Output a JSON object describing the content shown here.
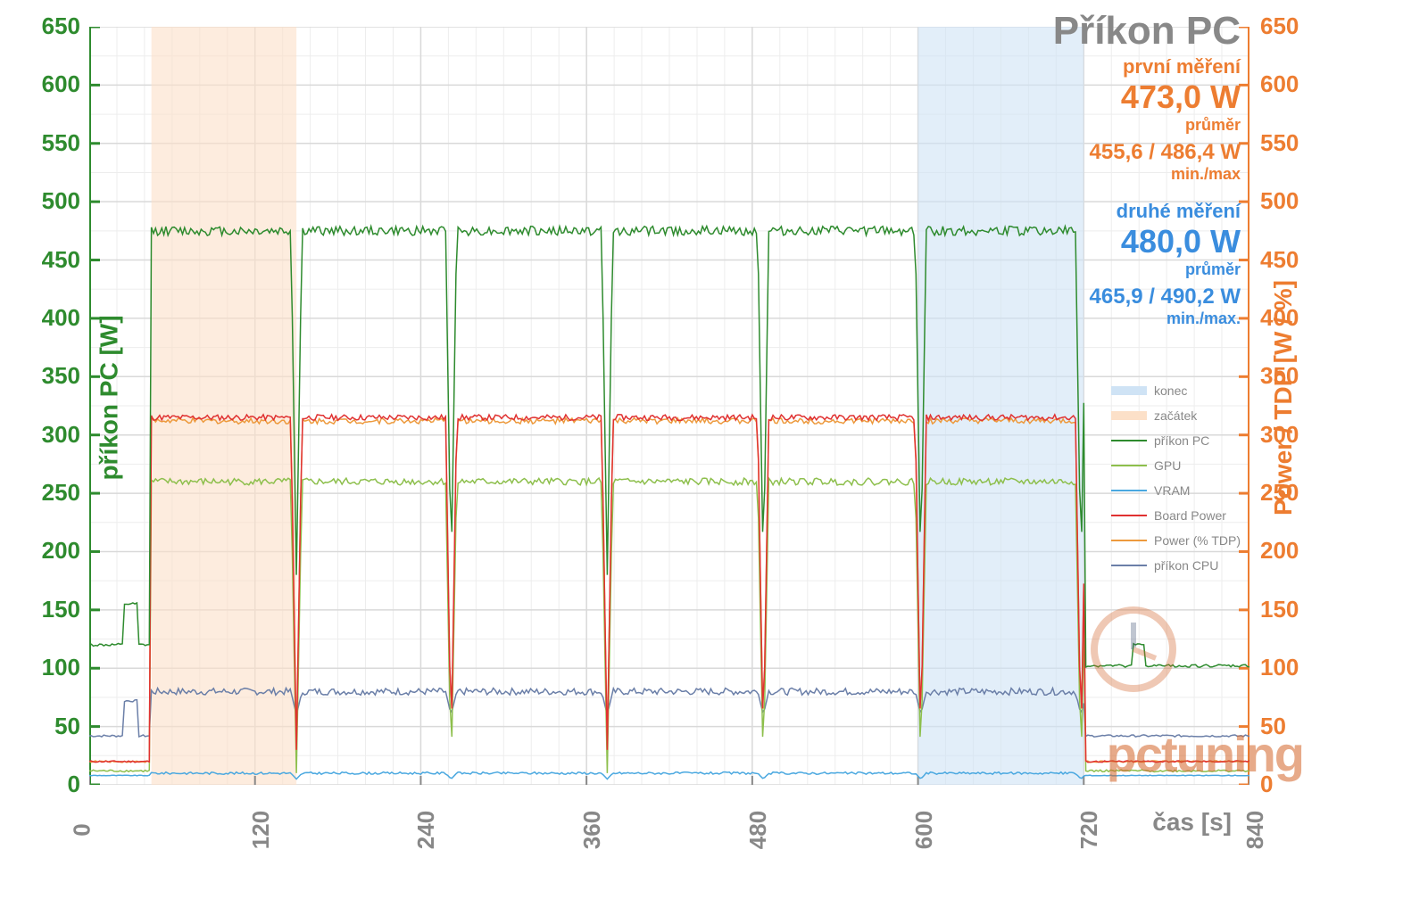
{
  "chart": {
    "type": "line",
    "title": "Příkon PC",
    "x_axis": {
      "label": "čas [s]",
      "label_color": "#888888",
      "min": 0,
      "max": 840,
      "step": 120,
      "ticks": [
        0,
        120,
        240,
        360,
        480,
        600,
        720,
        840
      ],
      "tick_color": "#888888",
      "tick_fontsize": 26
    },
    "y_axis_left": {
      "label": "příkon PC [W]",
      "label_color": "#2e8b2e",
      "min": 0,
      "max": 650,
      "step": 50,
      "ticks": [
        0,
        50,
        100,
        150,
        200,
        250,
        300,
        350,
        400,
        450,
        500,
        550,
        600,
        650
      ],
      "tick_color": "#2e8b2e",
      "line_color": "#2e8b2e",
      "line_width": 4
    },
    "y_axis_right": {
      "label": "Power / TDP [W / %]",
      "label_color": "#ed7d31",
      "min": 0,
      "max": 650,
      "step": 50,
      "ticks": [
        0,
        50,
        100,
        150,
        200,
        250,
        300,
        350,
        400,
        450,
        500,
        550,
        600,
        650
      ],
      "tick_color": "#ed7d31",
      "line_color": "#ed7d31",
      "line_width": 4
    },
    "grid": {
      "major_color": "#d9d9d9",
      "minor_color": "#ededed",
      "show_minor": true
    },
    "background_color": "#ffffff",
    "highlight_regions": [
      {
        "label": "začátek",
        "x_start": 45,
        "x_end": 150,
        "fill": "#fce0c8",
        "opacity": 0.6
      },
      {
        "label": "konec",
        "x_start": 600,
        "x_end": 720,
        "fill": "#cfe3f5",
        "opacity": 0.6
      }
    ],
    "measurements": {
      "first": {
        "label": "první měření",
        "avg": "473,0 W",
        "sub": "průměr",
        "minmax": "455,6 / 486,4 W",
        "minmax_sub": "min./max",
        "color": "#ed7d31"
      },
      "second": {
        "label": "druhé měření",
        "avg": "480,0 W",
        "sub": "průměr",
        "minmax": "465,9 / 490,2 W",
        "minmax_sub": "min./max.",
        "color": "#3a8dde"
      }
    },
    "legend": [
      {
        "name": "konec",
        "color": "#cfe3f5",
        "type": "fill"
      },
      {
        "name": "začátek",
        "color": "#fce0c8",
        "type": "fill"
      },
      {
        "name": "příkon PC",
        "color": "#2e8b2e",
        "type": "line"
      },
      {
        "name": "GPU",
        "color": "#8dbf4c",
        "type": "line"
      },
      {
        "name": "VRAM",
        "color": "#4aa8e0",
        "type": "line"
      },
      {
        "name": "Board Power",
        "color": "#e03131",
        "type": "line"
      },
      {
        "name": "Power (% TDP)",
        "color": "#ed9a3d",
        "type": "line"
      },
      {
        "name": "příkon CPU",
        "color": "#6b7fa8",
        "type": "line"
      }
    ],
    "series": {
      "prikon_pc": {
        "color": "#2e8b2e",
        "width": 1.5,
        "baseline_idle": 120,
        "plateau": 475,
        "noise": 8,
        "idle_end": 102,
        "dips_to": 180
      },
      "gpu": {
        "color": "#8dbf4c",
        "width": 1.5,
        "baseline_idle": 12,
        "plateau": 260,
        "noise": 6,
        "dips_to": 10
      },
      "vram": {
        "color": "#4aa8e0",
        "width": 1.5,
        "baseline_idle": 8,
        "plateau": 10,
        "noise": 2,
        "dips_to": 5
      },
      "board_power": {
        "color": "#e03131",
        "width": 1.5,
        "baseline_idle": 20,
        "plateau": 315,
        "noise": 5,
        "dips_to": 30
      },
      "power_tdp": {
        "color": "#ed9a3d",
        "width": 1.5,
        "baseline_idle": 20,
        "plateau": 312,
        "noise": 5,
        "dips_to": 30
      },
      "prikon_cpu": {
        "color": "#6b7fa8",
        "width": 1.5,
        "baseline_idle": 42,
        "plateau": 80,
        "noise": 6,
        "idle_end": 42,
        "dips_to": 60
      }
    },
    "load_pattern": {
      "cycles": 6,
      "ramp_up_at": 45,
      "ramp_down_at": 720,
      "dip_positions": [
        150,
        262,
        375,
        488,
        602,
        718
      ],
      "dip_width": 8
    },
    "title_fontsize": 44,
    "title_color": "#888888",
    "watermark": "pctuning"
  }
}
